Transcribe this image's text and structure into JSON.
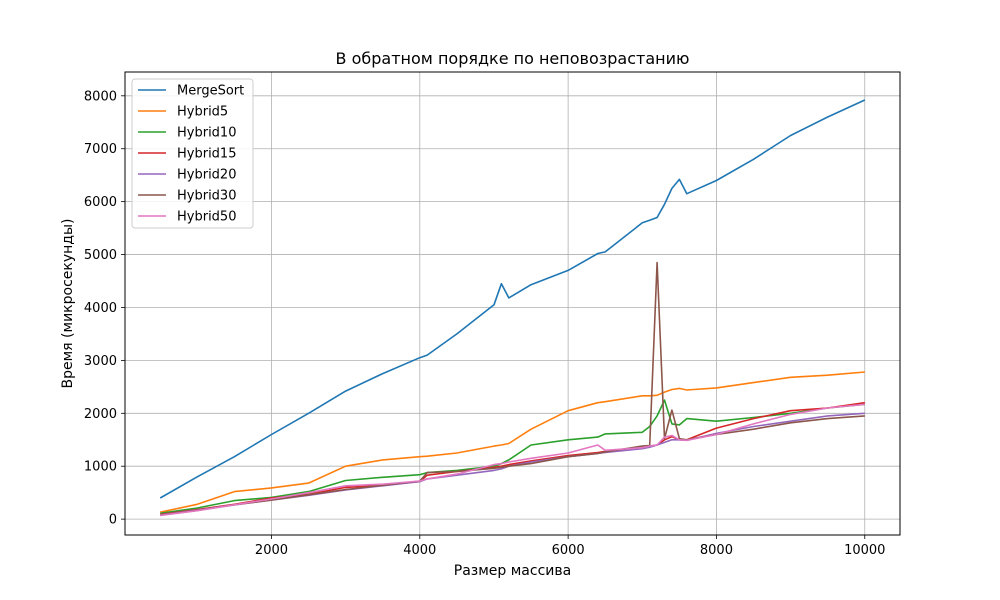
{
  "chart_data": {
    "type": "line",
    "title": "В обратном порядке по неповозрастанию",
    "xlabel": "Размер массива",
    "ylabel": "Время (микросекунды)",
    "xlim": [
      25,
      10475
    ],
    "ylim": [
      -300,
      8450
    ],
    "xticks": [
      2000,
      4000,
      6000,
      8000,
      10000
    ],
    "yticks": [
      0,
      1000,
      2000,
      3000,
      4000,
      5000,
      6000,
      7000,
      8000
    ],
    "grid": true,
    "legend_position": "top-left",
    "x": [
      500,
      1000,
      1500,
      2000,
      2500,
      3000,
      3500,
      4000,
      4100,
      4500,
      5000,
      5100,
      5200,
      5500,
      6000,
      6400,
      6500,
      7000,
      7100,
      7200,
      7300,
      7400,
      7500,
      7600,
      8000,
      8500,
      9000,
      9500,
      10000
    ],
    "series": [
      {
        "name": "MergeSort",
        "color": "#1f77b4",
        "values": [
          400,
          800,
          1180,
          1600,
          2000,
          2420,
          2750,
          3050,
          3100,
          3500,
          4050,
          4450,
          4180,
          4430,
          4700,
          5020,
          5050,
          5600,
          5650,
          5700,
          5950,
          6250,
          6420,
          6150,
          6400,
          6800,
          7250,
          7600,
          7920
        ]
      },
      {
        "name": "Hybrid5",
        "color": "#ff7f0e",
        "values": [
          130,
          280,
          520,
          590,
          680,
          1000,
          1120,
          1180,
          1190,
          1250,
          1380,
          1400,
          1430,
          1700,
          2050,
          2200,
          2220,
          2330,
          2330,
          2340,
          2400,
          2450,
          2470,
          2440,
          2480,
          2580,
          2680,
          2720,
          2780
        ]
      },
      {
        "name": "Hybrid10",
        "color": "#2ca02c",
        "values": [
          110,
          210,
          350,
          410,
          520,
          730,
          790,
          840,
          880,
          920,
          1000,
          1050,
          1120,
          1400,
          1500,
          1550,
          1610,
          1640,
          1750,
          1950,
          2250,
          1800,
          1780,
          1900,
          1850,
          1920,
          2000,
          2100,
          2170
        ]
      },
      {
        "name": "Hybrid15",
        "color": "#d62728",
        "values": [
          90,
          180,
          280,
          400,
          470,
          600,
          640,
          710,
          830,
          900,
          980,
          1000,
          1030,
          1100,
          1200,
          1260,
          1280,
          1350,
          1380,
          1400,
          1500,
          1560,
          1500,
          1500,
          1720,
          1900,
          2050,
          2100,
          2200
        ]
      },
      {
        "name": "Hybrid20",
        "color": "#9467bd",
        "values": [
          80,
          170,
          270,
          360,
          450,
          550,
          630,
          710,
          760,
          830,
          920,
          950,
          1000,
          1080,
          1180,
          1240,
          1260,
          1330,
          1360,
          1400,
          1450,
          1500,
          1500,
          1490,
          1620,
          1750,
          1850,
          1950,
          2000
        ]
      },
      {
        "name": "Hybrid30",
        "color": "#8c564b",
        "values": [
          75,
          165,
          270,
          360,
          460,
          560,
          640,
          720,
          880,
          900,
          960,
          980,
          1000,
          1050,
          1180,
          1240,
          1270,
          1380,
          1390,
          4850,
          1520,
          2060,
          1520,
          1500,
          1600,
          1700,
          1820,
          1900,
          1950
        ]
      },
      {
        "name": "Hybrid50",
        "color": "#e377c2",
        "values": [
          70,
          160,
          270,
          380,
          500,
          630,
          660,
          720,
          760,
          850,
          1030,
          1050,
          1080,
          1150,
          1250,
          1400,
          1300,
          1350,
          1380,
          1400,
          1550,
          1580,
          1500,
          1490,
          1600,
          1800,
          1980,
          2100,
          2170
        ]
      }
    ]
  }
}
